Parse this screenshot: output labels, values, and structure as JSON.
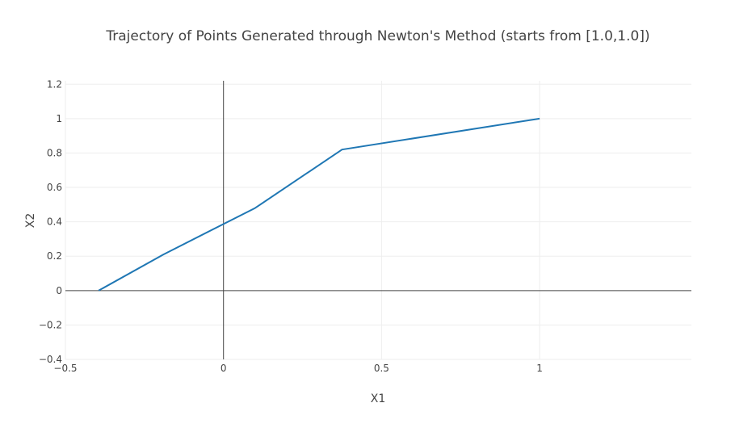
{
  "chart_data": {
    "type": "line",
    "title": "Trajectory of Points Generated through Newton's Method (starts from [1.0,1.0])",
    "xlabel": "X1",
    "ylabel": "X2",
    "xlim": [
      -0.5,
      1.48
    ],
    "ylim": [
      -0.4,
      1.22
    ],
    "x_ticks": [
      -0.5,
      0,
      0.5,
      1
    ],
    "x_tick_labels": [
      "−0.5",
      "0",
      "0.5",
      "1"
    ],
    "y_ticks": [
      -0.4,
      -0.2,
      0,
      0.2,
      0.4,
      0.6,
      0.8,
      1,
      1.2
    ],
    "y_tick_labels": [
      "−0.4",
      "−0.2",
      "0",
      "0.2",
      "0.4",
      "0.6",
      "0.8",
      "1",
      "1.2"
    ],
    "grid": true,
    "series": [
      {
        "color": "#1f77b4",
        "x": [
          1.0,
          0.375,
          0.1,
          -0.19,
          -0.395
        ],
        "y": [
          1.0,
          0.82,
          0.48,
          0.21,
          0.0
        ]
      }
    ]
  }
}
